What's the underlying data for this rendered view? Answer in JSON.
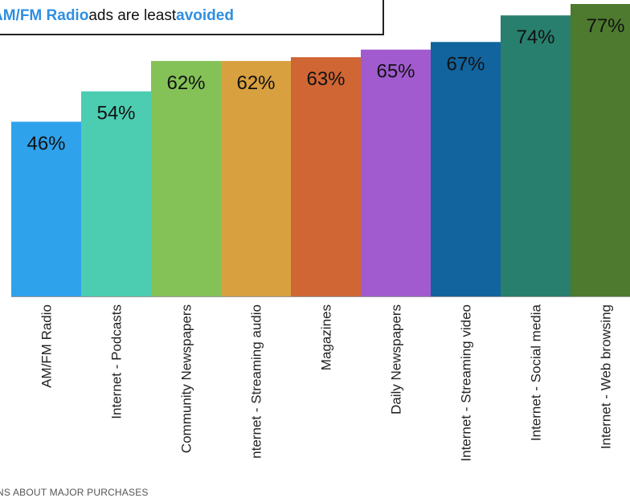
{
  "title": {
    "part1": "AM/FM Radio",
    "part2": " ads are least ",
    "part3": "avoided"
  },
  "footnote": "NS ABOUT MAJOR PURCHASES",
  "colors": {
    "title_accent": "#2f8fe0",
    "bars": [
      "#2fa2ec",
      "#4ccdb1",
      "#84c258",
      "#d9a040",
      "#cf6634",
      "#a15bcf",
      "#12649e",
      "#287f6d",
      "#4e7a2f"
    ]
  },
  "chart_data": {
    "type": "bar",
    "categories": [
      "AM/FM Radio",
      "Internet - Podcasts",
      "Community Newspapers",
      "nternet - Streaming audio",
      "Magazines",
      "Daily Newspapers",
      "Internet - Streaming video",
      "Internet - Social media",
      "Internet - Web browsing"
    ],
    "values": [
      46,
      54,
      62,
      62,
      63,
      65,
      67,
      74,
      77
    ],
    "value_labels": [
      "46%",
      "54%",
      "62%",
      "62%",
      "63%",
      "65%",
      "67%",
      "74%",
      "77%"
    ],
    "ylim": [
      0,
      77
    ],
    "grid": false,
    "legend": "none"
  }
}
